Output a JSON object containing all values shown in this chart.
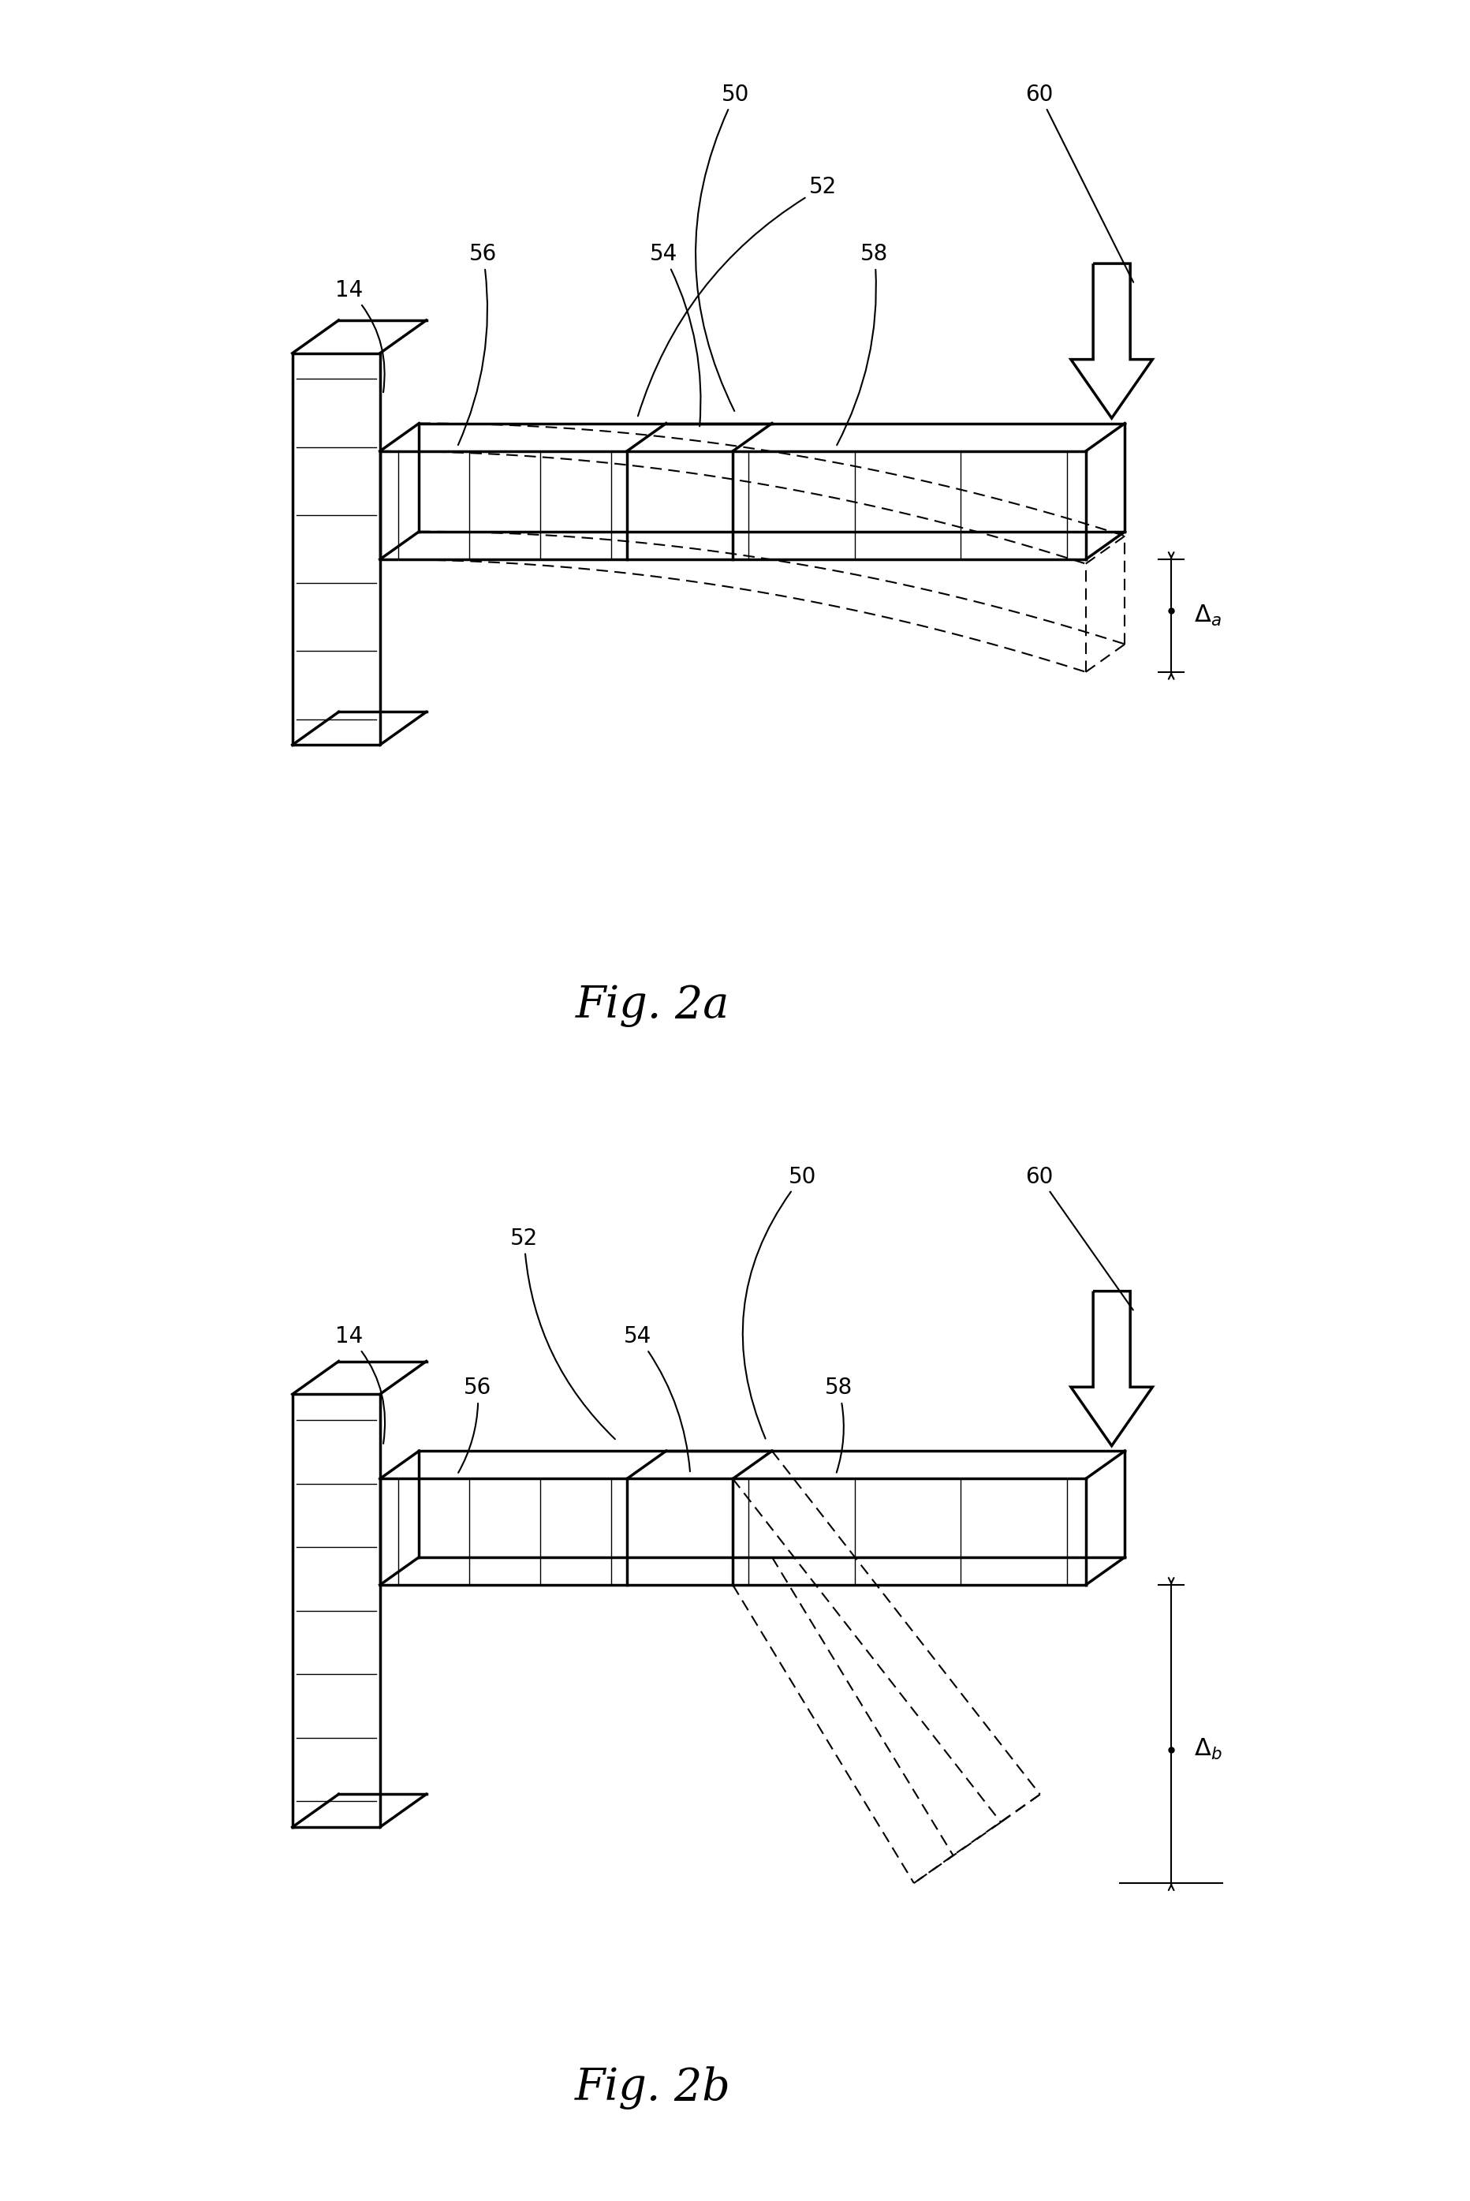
{
  "bg_color": "#ffffff",
  "line_color": "#000000",
  "fig2a_caption": "Fig. 2a",
  "fig2b_caption": "Fig. 2b"
}
